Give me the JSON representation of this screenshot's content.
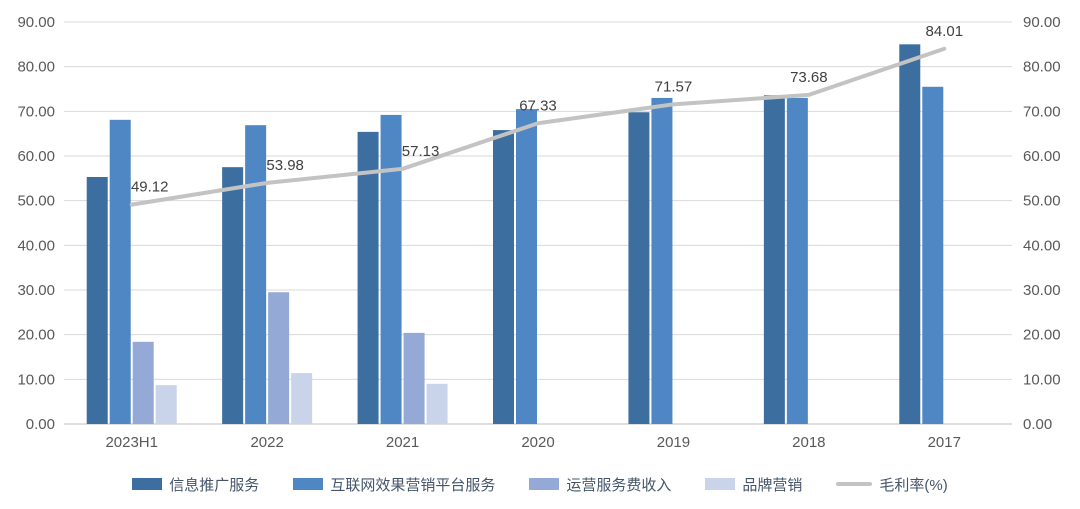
{
  "chart_data": {
    "type": "bar",
    "combo": "bar+line",
    "title": "",
    "categories": [
      "2023H1",
      "2022",
      "2021",
      "2020",
      "2019",
      "2018",
      "2017"
    ],
    "bar_series": [
      {
        "name": "信息推广服务",
        "color": "#3C6E9F",
        "values": [
          55.3,
          57.5,
          65.4,
          65.8,
          69.8,
          73.6,
          85.0
        ]
      },
      {
        "name": "互联网效果营销平台服务",
        "color": "#4E87C4",
        "values": [
          68.1,
          66.9,
          69.2,
          70.5,
          73.0,
          73.0,
          75.5
        ]
      },
      {
        "name": "运营服务费收入",
        "color": "#95A9D6",
        "values": [
          18.4,
          29.5,
          20.4,
          null,
          null,
          null,
          null
        ]
      },
      {
        "name": "品牌营销",
        "color": "#C9D4EA",
        "values": [
          8.7,
          11.4,
          9.0,
          null,
          null,
          null,
          null
        ]
      }
    ],
    "line_series": {
      "name": "毛利率(%)",
      "color": "#C3C3C3",
      "values": [
        49.12,
        53.98,
        57.13,
        67.33,
        71.57,
        73.68,
        84.01
      ],
      "data_labels": [
        "49.12",
        "53.98",
        "57.13",
        "67.33",
        "71.57",
        "73.68",
        "84.01"
      ]
    },
    "y_axis_left": {
      "min": 0,
      "max": 90,
      "step": 10,
      "tick_format": "0.00"
    },
    "y_axis_right": {
      "min": 0,
      "max": 90,
      "step": 10,
      "tick_format": "0.00"
    },
    "grid": true,
    "legend_position": "bottom",
    "colors": {
      "gridline": "#D9D9D9",
      "axis_line": "#BFBFBF",
      "tick_text": "#595959",
      "data_label_text": "#404040",
      "legend_text": "#44546A",
      "background": "#FFFFFF"
    }
  }
}
